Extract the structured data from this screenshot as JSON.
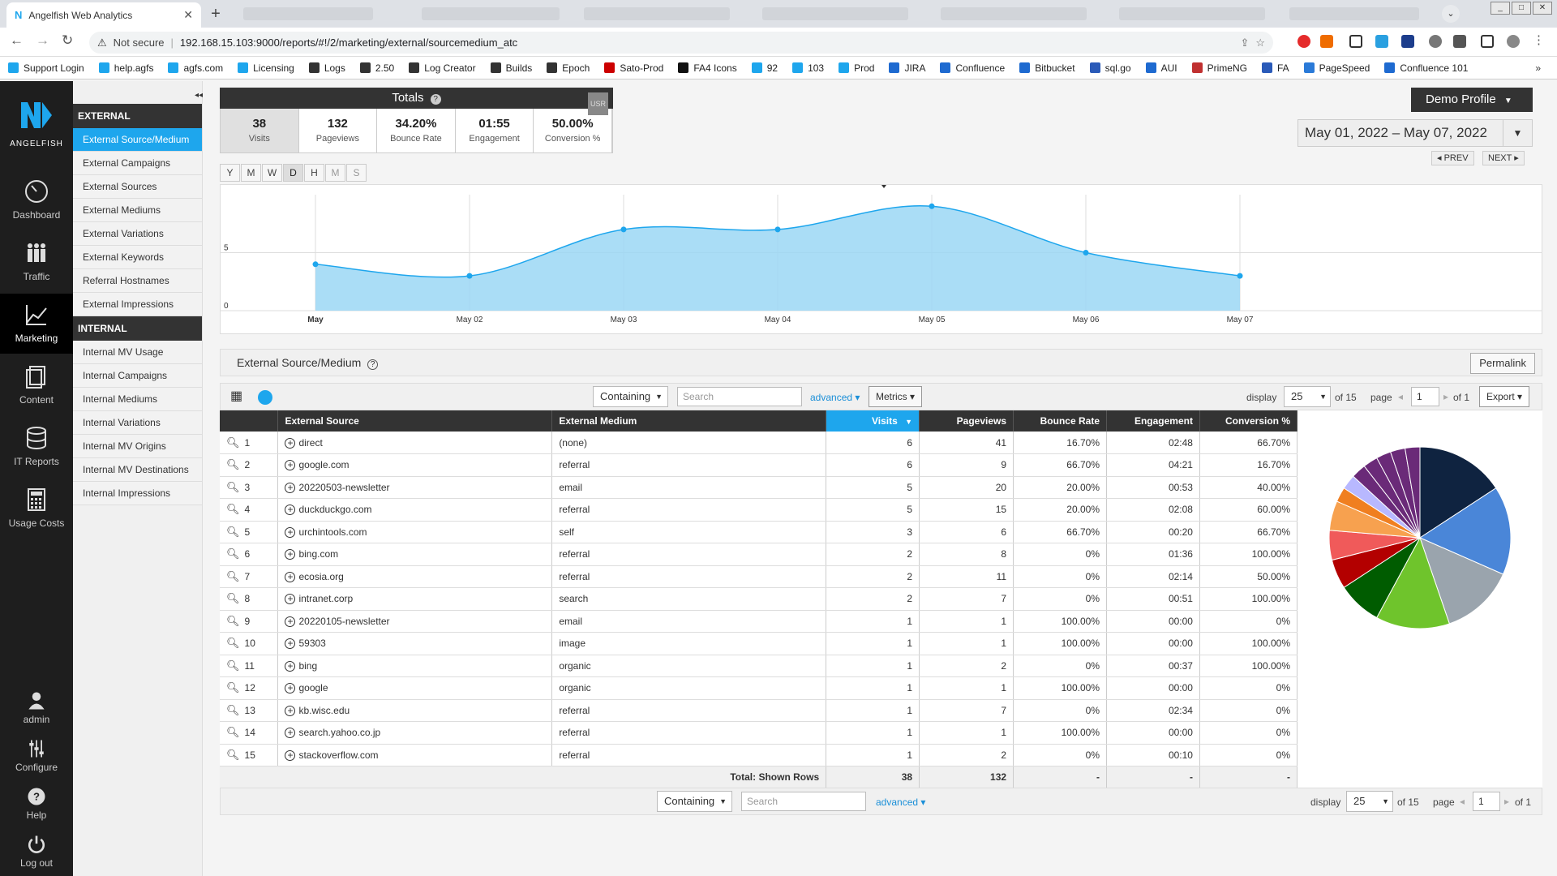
{
  "browser": {
    "tab_title": "Angelfish Web Analytics",
    "url_warning": "Not secure",
    "url": "192.168.15.103:9000/reports/#!/2/marketing/external/sourcemedium_atc",
    "bookmarks": [
      "Support Login",
      "help.agfs",
      "agfs.com",
      "Licensing",
      "Logs",
      "2.50",
      "Log Creator",
      "Builds",
      "Epoch",
      "Sato-Prod",
      "FA4 Icons",
      "92",
      "103",
      "Prod",
      "JIRA",
      "Confluence",
      "Bitbucket",
      "sql.go",
      "AUI",
      "PrimeNG",
      "FA",
      "PageSpeed",
      "Confluence 101"
    ]
  },
  "brand": {
    "name": "ANGELFISH",
    "accent": "#1ea6ed"
  },
  "leftnav": [
    {
      "label": "Dashboard",
      "icon": "dashboard-gauge-icon"
    },
    {
      "label": "Traffic",
      "icon": "traffic-people-icon"
    },
    {
      "label": "Marketing",
      "icon": "marketing-chart-icon",
      "active": true
    },
    {
      "label": "Content",
      "icon": "content-files-icon"
    },
    {
      "label": "IT Reports",
      "icon": "it-database-icon"
    },
    {
      "label": "Usage Costs",
      "icon": "calculator-icon"
    }
  ],
  "leftnav_bottom": [
    {
      "label": "admin",
      "icon": "user-icon"
    },
    {
      "label": "Configure",
      "icon": "sliders-icon"
    },
    {
      "label": "Help",
      "icon": "help-icon"
    },
    {
      "label": "Log out",
      "icon": "power-icon"
    }
  ],
  "submenu": {
    "external_header": "EXTERNAL",
    "external_items": [
      "External Source/Medium",
      "External Campaigns",
      "External Sources",
      "External Mediums",
      "External Variations",
      "External Keywords",
      "Referral Hostnames",
      "External Impressions"
    ],
    "internal_header": "INTERNAL",
    "internal_items": [
      "Internal MV Usage",
      "Internal Campaigns",
      "Internal Mediums",
      "Internal Variations",
      "Internal MV Origins",
      "Internal MV Destinations",
      "Internal Impressions"
    ]
  },
  "totals": {
    "title": "Totals",
    "badge": "USR",
    "cells": [
      {
        "value": "38",
        "label": "Visits"
      },
      {
        "value": "132",
        "label": "Pageviews"
      },
      {
        "value": "34.20%",
        "label": "Bounce Rate"
      },
      {
        "value": "01:55",
        "label": "Engagement"
      },
      {
        "value": "50.00%",
        "label": "Conversion %"
      }
    ]
  },
  "profile": "Demo Profile",
  "date_range": "May 01, 2022 – May 07, 2022",
  "prev_label": "◂ PREV",
  "next_label": "NEXT ▸",
  "granularity": [
    "Y",
    "M",
    "W",
    "D",
    "H",
    "M",
    "S"
  ],
  "chart_data": {
    "type": "area",
    "categories": [
      "May",
      "May 02",
      "May 03",
      "May 04",
      "May 05",
      "May 06",
      "May 07"
    ],
    "values": [
      4,
      3,
      7,
      7,
      9,
      5,
      3
    ],
    "yticks": [
      "0",
      "5"
    ],
    "ylim": [
      0,
      10
    ],
    "color": "#1ea6ed"
  },
  "report_title": "External Source/Medium",
  "permalink": "Permalink",
  "filters": {
    "match": "Containing",
    "search_placeholder": "Search",
    "advanced": "advanced",
    "metrics": "Metrics",
    "display_label": "display",
    "display_value": "25",
    "of_rows": "of 15",
    "page_label": "page",
    "page_value": "1",
    "of_pages": "of 1",
    "export": "Export"
  },
  "table": {
    "columns": [
      "External Source",
      "External Medium",
      "Visits",
      "Pageviews",
      "Bounce Rate",
      "Engagement",
      "Conversion %"
    ],
    "rows": [
      [
        "1",
        "direct",
        "(none)",
        "6",
        "41",
        "16.70%",
        "02:48",
        "66.70%"
      ],
      [
        "2",
        "google.com",
        "referral",
        "6",
        "9",
        "66.70%",
        "04:21",
        "16.70%"
      ],
      [
        "3",
        "20220503-newsletter",
        "email",
        "5",
        "20",
        "20.00%",
        "00:53",
        "40.00%"
      ],
      [
        "4",
        "duckduckgo.com",
        "referral",
        "5",
        "15",
        "20.00%",
        "02:08",
        "60.00%"
      ],
      [
        "5",
        "urchintools.com",
        "self",
        "3",
        "6",
        "66.70%",
        "00:20",
        "66.70%"
      ],
      [
        "6",
        "bing.com",
        "referral",
        "2",
        "8",
        "0%",
        "01:36",
        "100.00%"
      ],
      [
        "7",
        "ecosia.org",
        "referral",
        "2",
        "11",
        "0%",
        "02:14",
        "50.00%"
      ],
      [
        "8",
        "intranet.corp",
        "search",
        "2",
        "7",
        "0%",
        "00:51",
        "100.00%"
      ],
      [
        "9",
        "20220105-newsletter",
        "email",
        "1",
        "1",
        "100.00%",
        "00:00",
        "0%"
      ],
      [
        "10",
        "59303",
        "image",
        "1",
        "1",
        "100.00%",
        "00:00",
        "100.00%"
      ],
      [
        "11",
        "bing",
        "organic",
        "1",
        "2",
        "0%",
        "00:37",
        "100.00%"
      ],
      [
        "12",
        "google",
        "organic",
        "1",
        "1",
        "100.00%",
        "00:00",
        "0%"
      ],
      [
        "13",
        "kb.wisc.edu",
        "referral",
        "1",
        "7",
        "0%",
        "02:34",
        "0%"
      ],
      [
        "14",
        "search.yahoo.co.jp",
        "referral",
        "1",
        "1",
        "100.00%",
        "00:00",
        "0%"
      ],
      [
        "15",
        "stackoverflow.com",
        "referral",
        "1",
        "2",
        "0%",
        "00:10",
        "0%"
      ]
    ],
    "total_label": "Total: Shown Rows",
    "totals": [
      "38",
      "132",
      "-",
      "-",
      "-"
    ]
  },
  "pie": {
    "values": [
      6,
      6,
      5,
      5,
      3,
      2,
      2,
      2,
      1,
      1,
      1,
      1,
      1,
      1,
      1
    ],
    "colors": [
      "#0f2340",
      "#4a86d8",
      "#9aa4ad",
      "#6fc42c",
      "#005c00",
      "#b30000",
      "#f05a5a",
      "#f7a14f",
      "#f07f20",
      "#b8b8ff",
      "#6a2a78",
      "#6a2a78",
      "#6a2a78",
      "#6a2a78",
      "#6a2a78"
    ]
  }
}
